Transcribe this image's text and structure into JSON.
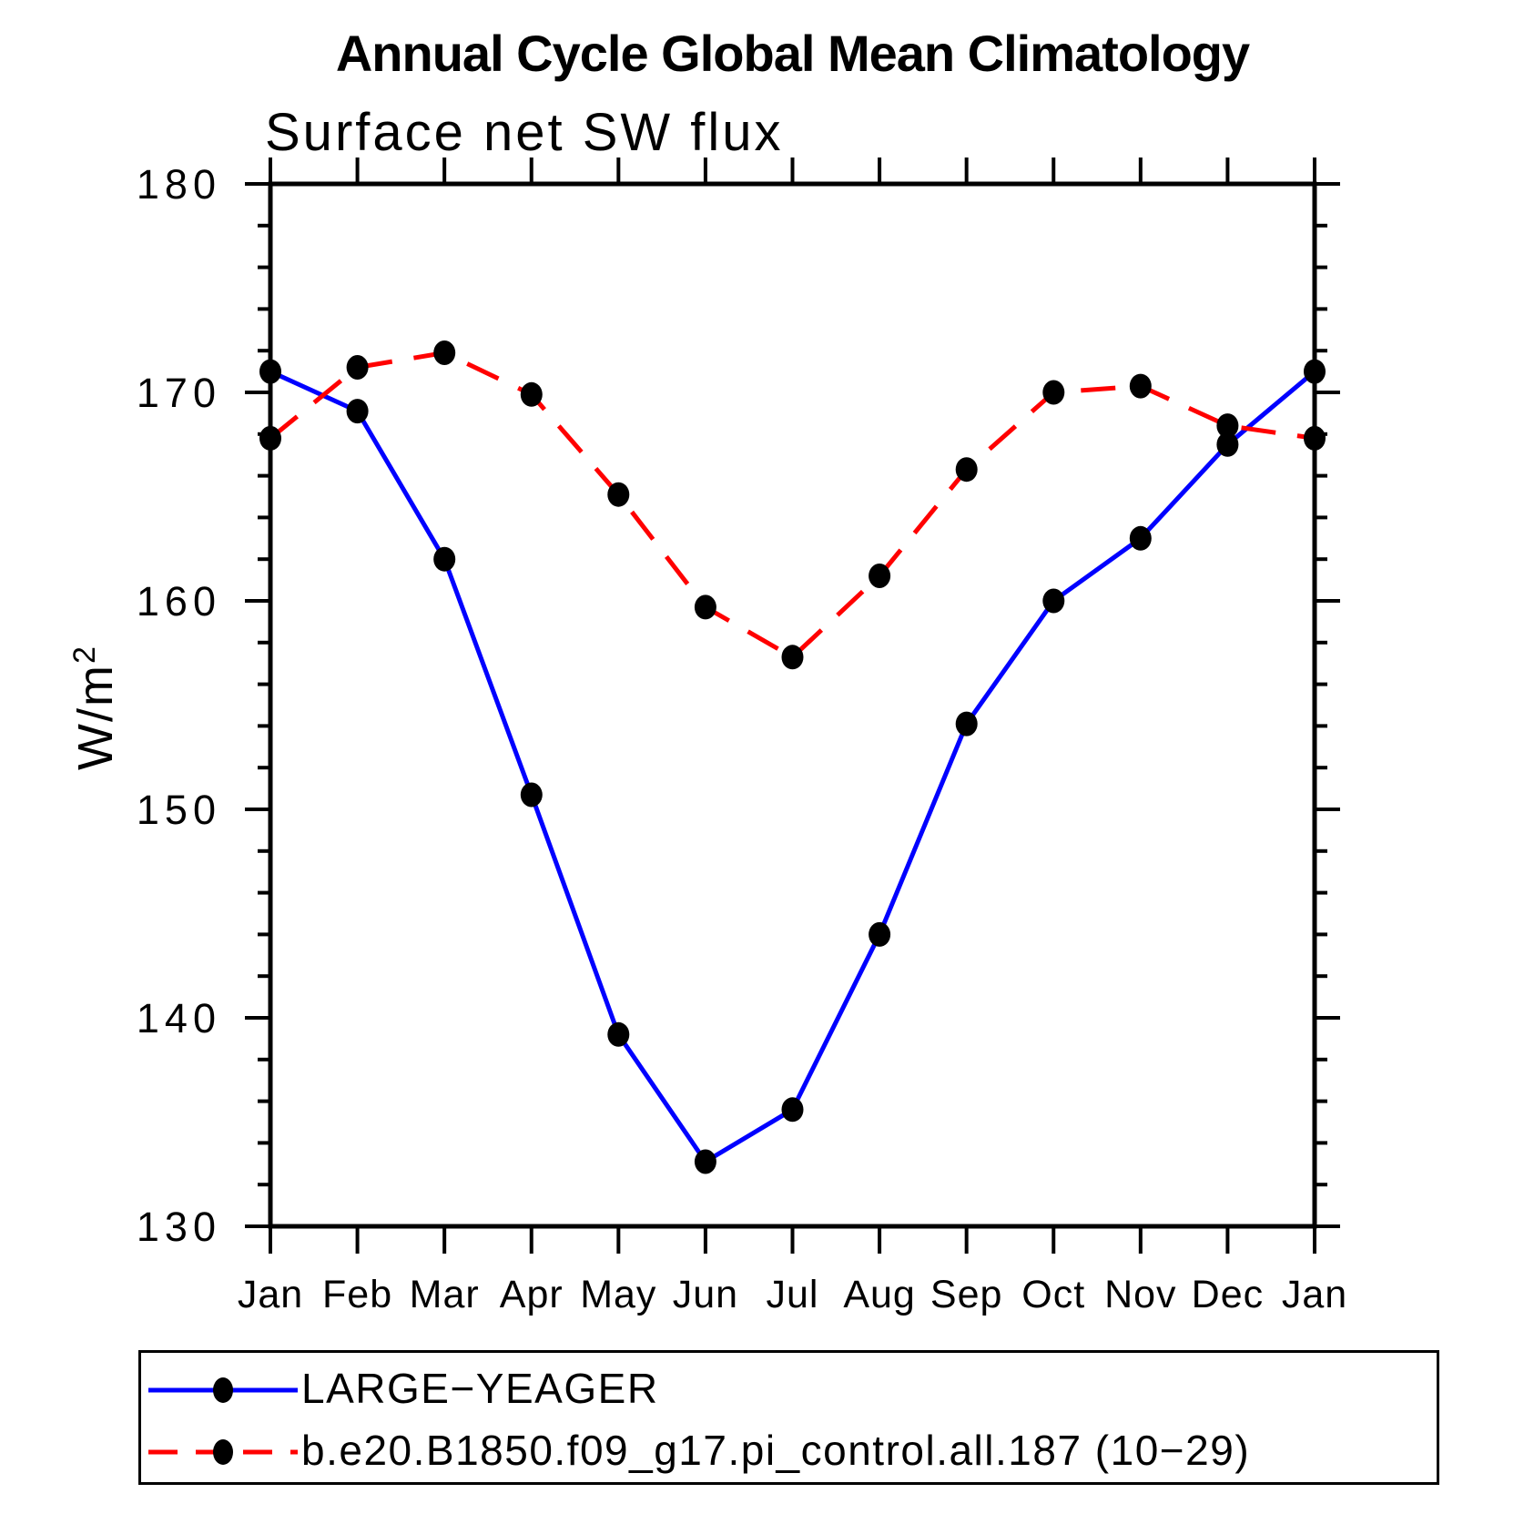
{
  "page": {
    "title": "Annual Cycle Global Mean Climatology"
  },
  "chart_data": {
    "type": "line",
    "title": "Annual Cycle Global Mean Climatology",
    "subtitle": "Surface net SW flux",
    "ylabel": {
      "base": "W/m",
      "exponent": "2"
    },
    "categories": [
      "Jan",
      "Feb",
      "Mar",
      "Apr",
      "May",
      "Jun",
      "Jul",
      "Aug",
      "Sep",
      "Oct",
      "Nov",
      "Dec",
      "Jan"
    ],
    "ylim": [
      130,
      180
    ],
    "y_major_ticks": [
      130,
      140,
      150,
      160,
      170,
      180
    ],
    "y_major_tick_labels": [
      "130",
      "140",
      "150",
      "160",
      "170",
      "180"
    ],
    "y_minor_step": 2,
    "grid": false,
    "legend_position": "bottom-left",
    "axis_color": "#000000",
    "marker_color": "#000000",
    "series": [
      {
        "name": "LARGE−YEAGER",
        "color": "#0000ff",
        "style": "solid",
        "marker": "filled-circle",
        "values": [
          171.0,
          169.1,
          162.0,
          150.7,
          139.2,
          133.1,
          135.6,
          144.0,
          154.1,
          160.0,
          163.0,
          167.5,
          171.0
        ]
      },
      {
        "name": "b.e20.B1850.f09_g17.pi_control.all.187 (10−29)",
        "color": "#ff0000",
        "style": "dashed",
        "marker": "filled-circle",
        "values": [
          167.8,
          171.2,
          171.9,
          169.9,
          165.1,
          159.7,
          157.3,
          161.2,
          166.3,
          170.0,
          170.3,
          168.4,
          167.8
        ]
      }
    ]
  }
}
